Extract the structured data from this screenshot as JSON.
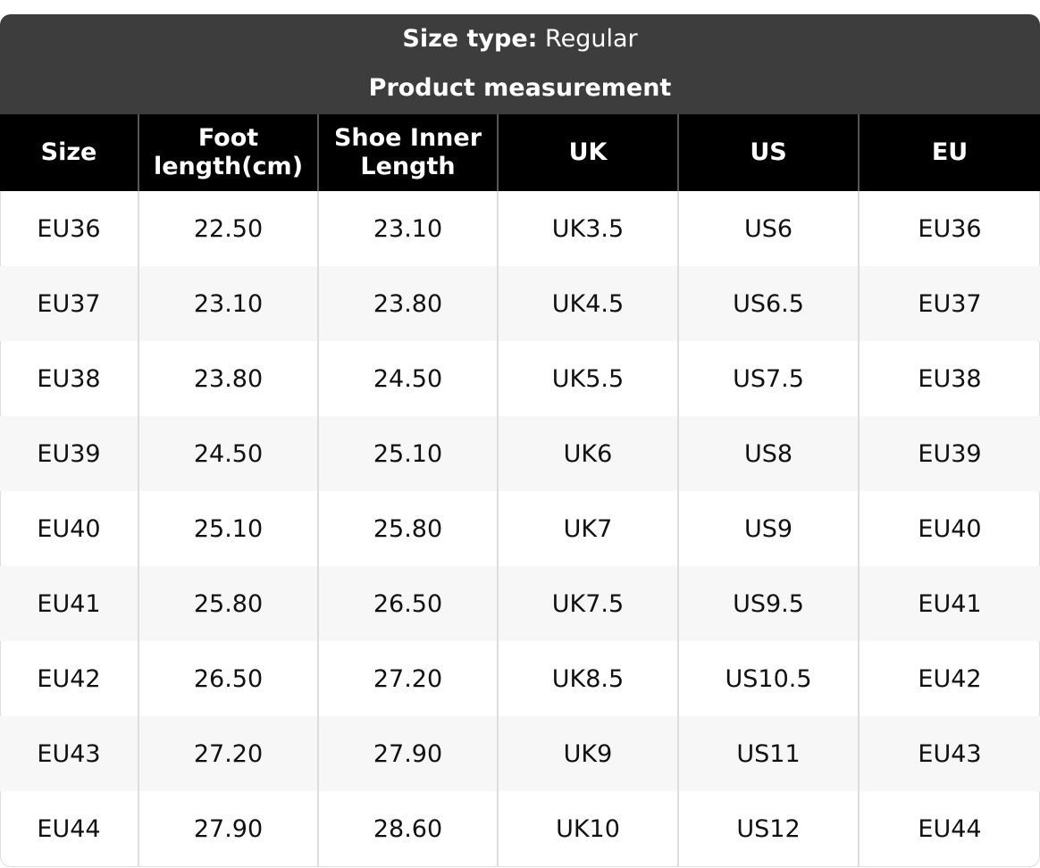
{
  "header": {
    "size_type_label": "Size type:",
    "size_type_value": "Regular",
    "subtitle": "Product measurement"
  },
  "table": {
    "columns": [
      "Size",
      "Foot length(cm)",
      "Shoe Inner Length",
      "UK",
      "US",
      "EU"
    ],
    "rows": [
      [
        "EU36",
        "22.50",
        "23.10",
        "UK3.5",
        "US6",
        "EU36"
      ],
      [
        "EU37",
        "23.10",
        "23.80",
        "UK4.5",
        "US6.5",
        "EU37"
      ],
      [
        "EU38",
        "23.80",
        "24.50",
        "UK5.5",
        "US7.5",
        "EU38"
      ],
      [
        "EU39",
        "24.50",
        "25.10",
        "UK6",
        "US8",
        "EU39"
      ],
      [
        "EU40",
        "25.10",
        "25.80",
        "UK7",
        "US9",
        "EU40"
      ],
      [
        "EU41",
        "25.80",
        "26.50",
        "UK7.5",
        "US9.5",
        "EU41"
      ],
      [
        "EU42",
        "26.50",
        "27.20",
        "UK8.5",
        "US10.5",
        "EU42"
      ],
      [
        "EU43",
        "27.20",
        "27.90",
        "UK9",
        "US11",
        "EU43"
      ],
      [
        "EU44",
        "27.90",
        "28.60",
        "UK10",
        "US12",
        "EU44"
      ]
    ]
  }
}
